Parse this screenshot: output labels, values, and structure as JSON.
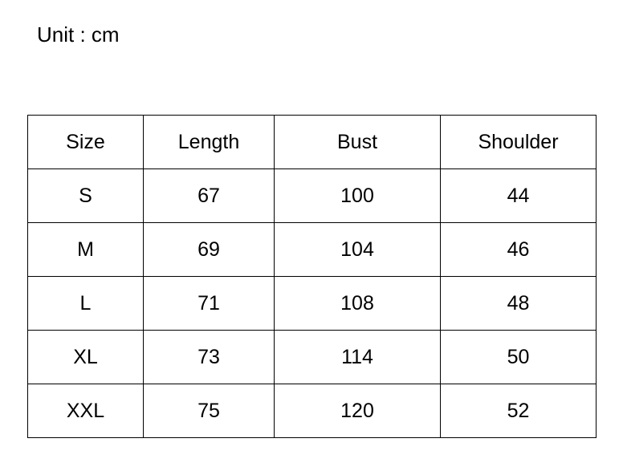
{
  "unit_label": "Unit : cm",
  "table": {
    "headers": [
      "Size",
      "Length",
      "Bust",
      "Shoulder"
    ],
    "rows": [
      [
        "S",
        "67",
        "100",
        "44"
      ],
      [
        "M",
        "69",
        "104",
        "46"
      ],
      [
        "L",
        "71",
        "108",
        "48"
      ],
      [
        "XL",
        "73",
        "114",
        "50"
      ],
      [
        "XXL",
        "75",
        "120",
        "52"
      ]
    ]
  }
}
